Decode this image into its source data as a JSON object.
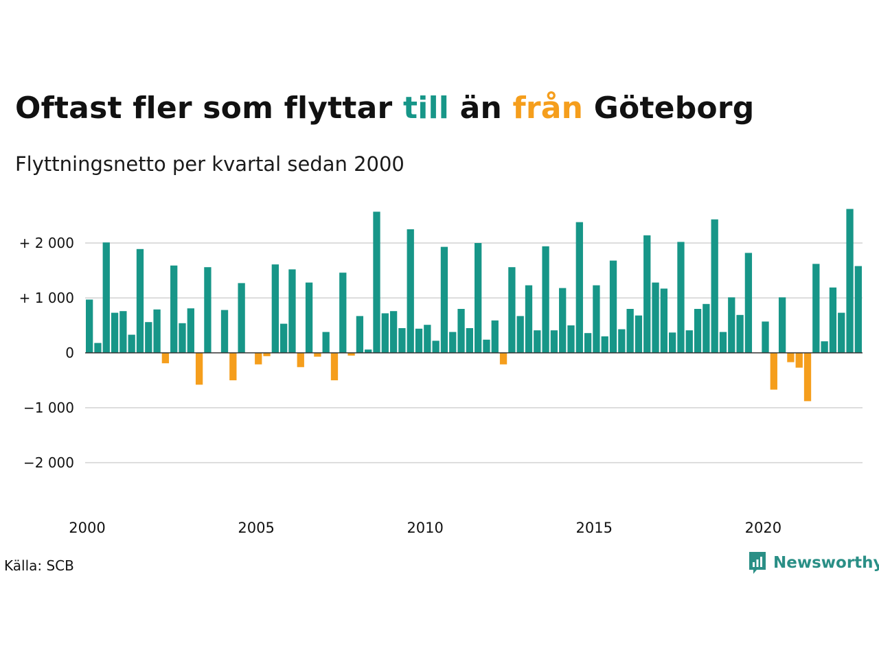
{
  "header": {
    "title_part1": "Oftast fler som flyttar ",
    "title_till": "till",
    "title_part2": " än ",
    "title_fran": "från",
    "title_part3": " Göteborg",
    "subtitle": "Flyttningsnetto per kvartal sedan 2000"
  },
  "footer": {
    "source": "Källa: SCB",
    "brand": "Newsworthy"
  },
  "colors": {
    "positive": "#179688",
    "negative": "#f59e1c",
    "grid": "#dddddd",
    "brand": "#2a8f86"
  },
  "chart_data": {
    "type": "bar",
    "title": "Oftast fler som flyttar till än från Göteborg",
    "subtitle": "Flyttningsnetto per kvartal sedan 2000",
    "xlabel": "",
    "ylabel": "",
    "ylim": [
      -2500,
      2700
    ],
    "y_ticks": [
      {
        "value": 2000,
        "label": "+ 2 000"
      },
      {
        "value": 1000,
        "label": "+ 1 000"
      },
      {
        "value": 0,
        "label": "0"
      },
      {
        "value": -1000,
        "label": "−1 000"
      },
      {
        "value": -2000,
        "label": "−2 000"
      }
    ],
    "x_ticks": [
      {
        "index": 0,
        "label": "2000"
      },
      {
        "index": 20,
        "label": "2005"
      },
      {
        "index": 40,
        "label": "2010"
      },
      {
        "index": 60,
        "label": "2015"
      },
      {
        "index": 80,
        "label": "2020"
      }
    ],
    "grid": true,
    "legend": "none",
    "start_period": "2000 Q1",
    "values": [
      970,
      180,
      2010,
      730,
      760,
      330,
      1890,
      560,
      790,
      -190,
      1590,
      540,
      810,
      -580,
      1560,
      0,
      780,
      -500,
      1270,
      0,
      -210,
      -60,
      1610,
      530,
      1520,
      -260,
      1280,
      -70,
      380,
      -500,
      1460,
      -50,
      670,
      60,
      2570,
      720,
      760,
      450,
      2250,
      440,
      510,
      220,
      1930,
      380,
      800,
      450,
      2000,
      240,
      590,
      -210,
      1560,
      670,
      1230,
      410,
      1940,
      410,
      1180,
      500,
      2380,
      360,
      1230,
      300,
      1680,
      430,
      800,
      680,
      2140,
      1280,
      1170,
      370,
      2020,
      410,
      800,
      890,
      2430,
      380,
      1010,
      690,
      1820,
      0,
      570,
      -670,
      1010,
      -170,
      -270,
      -880,
      1620,
      210,
      1190,
      730,
      2620,
      1580
    ]
  }
}
